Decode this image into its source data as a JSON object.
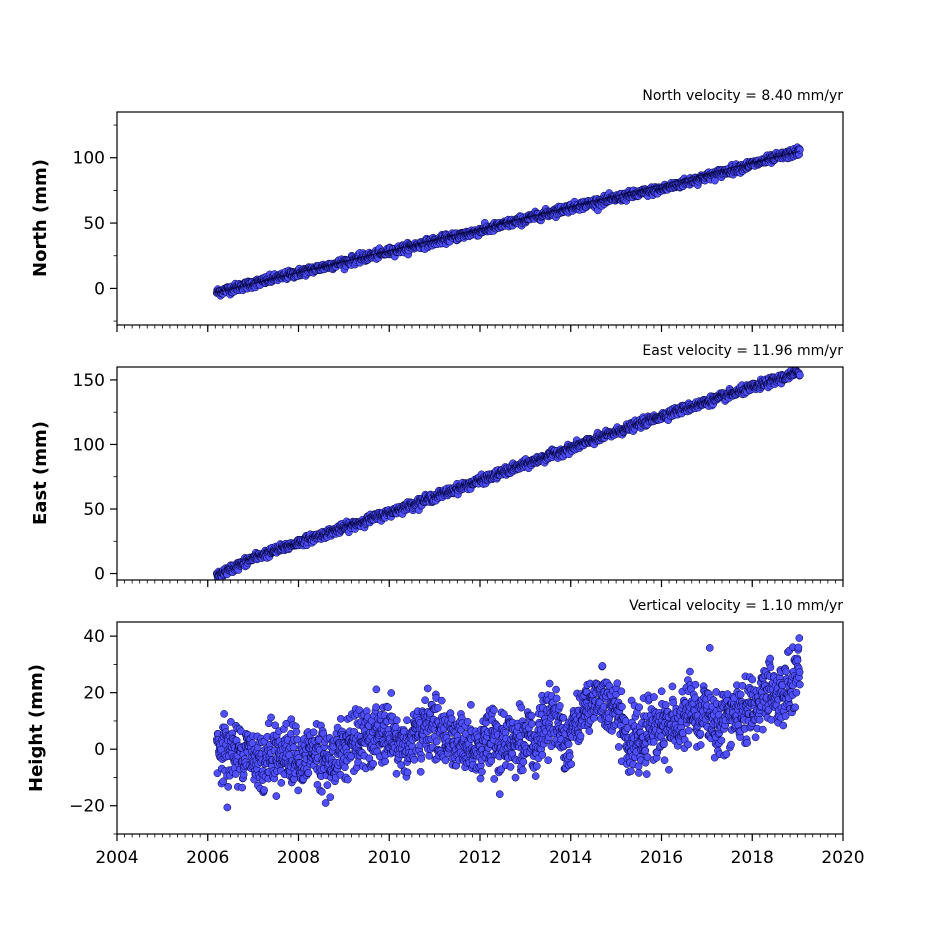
{
  "chart_data": [
    {
      "type": "scatter",
      "title": "North velocity = 8.40 mm/yr",
      "xlabel": "",
      "ylabel": "North (mm)",
      "xlim": [
        2004,
        2020
      ],
      "ylim": [
        -28,
        135
      ],
      "x_ticks": [
        2004,
        2006,
        2008,
        2010,
        2012,
        2014,
        2016,
        2018,
        2020
      ],
      "y_ticks": [
        0,
        50,
        100
      ],
      "grid": false,
      "marker_color": "#4f4fff",
      "marker_edge_color": "#000033",
      "trend": {
        "x_start": 2006.2,
        "y_start": -3,
        "x_end": 2019.05,
        "y_end": 105
      },
      "anchors": {
        "x": [
          2006.2,
          2008,
          2010,
          2012,
          2014,
          2016,
          2018,
          2019.05
        ],
        "y": [
          -3,
          12,
          28,
          44,
          62,
          76,
          95,
          105
        ]
      },
      "noise_sd": 1.6,
      "count": 1600
    },
    {
      "type": "scatter",
      "title": "East velocity = 11.96 mm/yr",
      "xlabel": "",
      "ylabel": "East (mm)",
      "xlim": [
        2004,
        2020
      ],
      "ylim": [
        -5,
        160
      ],
      "x_ticks": [
        2004,
        2006,
        2008,
        2010,
        2012,
        2014,
        2016,
        2018,
        2020
      ],
      "y_ticks": [
        0,
        50,
        100,
        150
      ],
      "grid": false,
      "marker_color": "#4f4fff",
      "marker_edge_color": "#000033",
      "anchors": {
        "x": [
          2006.2,
          2007,
          2008,
          2010,
          2012,
          2014,
          2016,
          2018,
          2019.05
        ],
        "y": [
          -2,
          12,
          24,
          47,
          72,
          97,
          122,
          144,
          156
        ]
      },
      "noise_sd": 1.6,
      "count": 1600
    },
    {
      "type": "scatter",
      "title": "Vertical velocity = 1.10 mm/yr",
      "xlabel": "",
      "ylabel": "Height (mm)",
      "xlim": [
        2004,
        2020
      ],
      "ylim": [
        -30,
        45
      ],
      "x_ticks": [
        2004,
        2006,
        2008,
        2010,
        2012,
        2014,
        2016,
        2018,
        2020
      ],
      "x_tick_labels": [
        "2004",
        "2006",
        "2008",
        "2010",
        "2012",
        "2014",
        "2016",
        "2018",
        "2020"
      ],
      "y_ticks": [
        -20,
        0,
        20,
        40
      ],
      "y_tick_labels": [
        "−20",
        "0",
        "20",
        "40"
      ],
      "grid": false,
      "marker_color": "#4f4fff",
      "marker_edge_color": "#000033",
      "anchors": {
        "x": [
          2006.2,
          2008,
          2010,
          2012,
          2014,
          2016,
          2017,
          2018,
          2019.05
        ],
        "y": [
          2,
          1,
          3,
          6,
          7,
          8,
          9,
          12,
          20
        ]
      },
      "noise_sd": 6.5,
      "count": 2000
    }
  ]
}
